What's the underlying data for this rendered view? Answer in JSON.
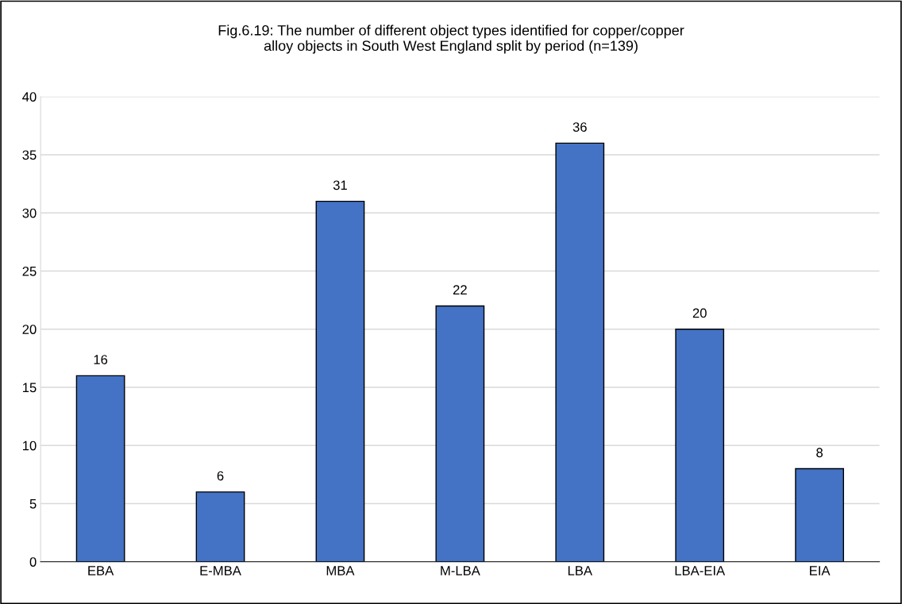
{
  "chart_data": {
    "type": "bar",
    "title": "Fig.6.19: The number of different object types identified for copper/copper\nalloy objects in South West England split by period (n=139)",
    "categories": [
      "EBA",
      "E-MBA",
      "MBA",
      "M-LBA",
      "LBA",
      "LBA-EIA",
      "EIA"
    ],
    "values": [
      16,
      6,
      31,
      22,
      36,
      20,
      8
    ],
    "color": "#4472c4",
    "ylim": [
      0,
      40
    ],
    "yticks": [
      0,
      5,
      10,
      15,
      20,
      25,
      30,
      35,
      40
    ],
    "grid": "y",
    "data_labels": true
  }
}
